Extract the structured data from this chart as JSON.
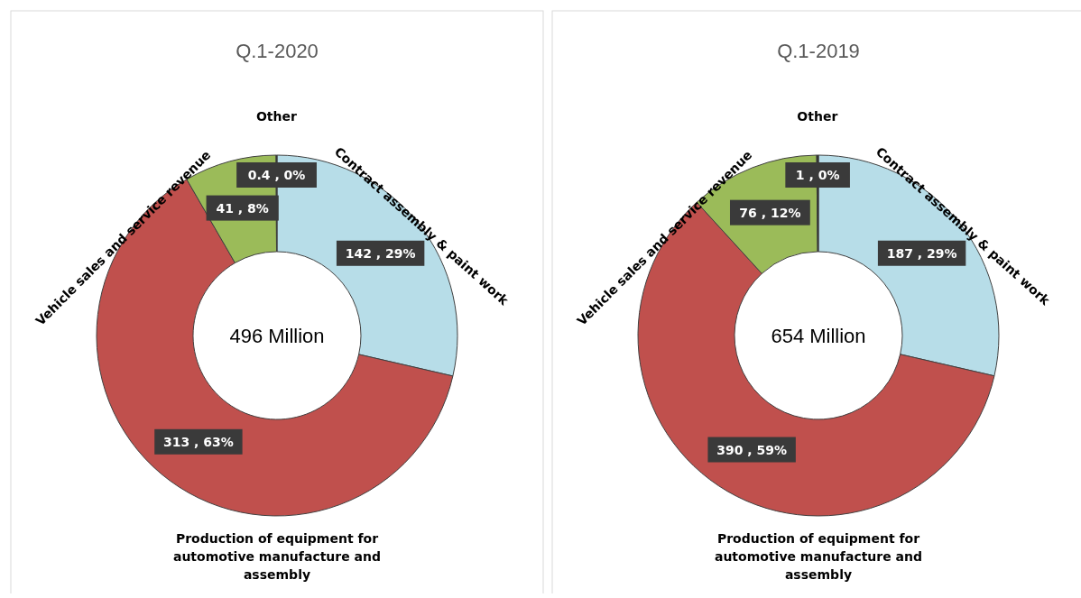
{
  "chart_data": [
    {
      "type": "donut",
      "title": "Q.1-2020",
      "categories": [
        "Contract assembly & paint work",
        "Production of equipment for automotive manufacture and assembly",
        "Vehicle sales and service revenue",
        "Other"
      ],
      "values": [
        142,
        313,
        41,
        0.4
      ],
      "colors": [
        "#b7dde8",
        "#c0504d",
        "#9bbb59",
        "#1f1f1f"
      ],
      "value_labels": [
        "142 , 29%",
        "313 , 63%",
        "41 , 8%",
        "0.4 , 0%"
      ],
      "annotations": [
        "496   Million"
      ]
    },
    {
      "type": "donut",
      "title": "Q.1-2019",
      "categories": [
        "Contract assembly & paint work",
        "Production of equipment for automotive manufacture and assembly",
        "Vehicle sales and service revenue",
        "Other"
      ],
      "values": [
        187,
        390,
        76,
        1
      ],
      "colors": [
        "#b7dde8",
        "#c0504d",
        "#9bbb59",
        "#1f1f1f"
      ],
      "value_labels": [
        "187 , 29%",
        "390 , 59%",
        "76 , 12%",
        "1 , 0%"
      ],
      "annotations": [
        "654   Million"
      ]
    }
  ]
}
